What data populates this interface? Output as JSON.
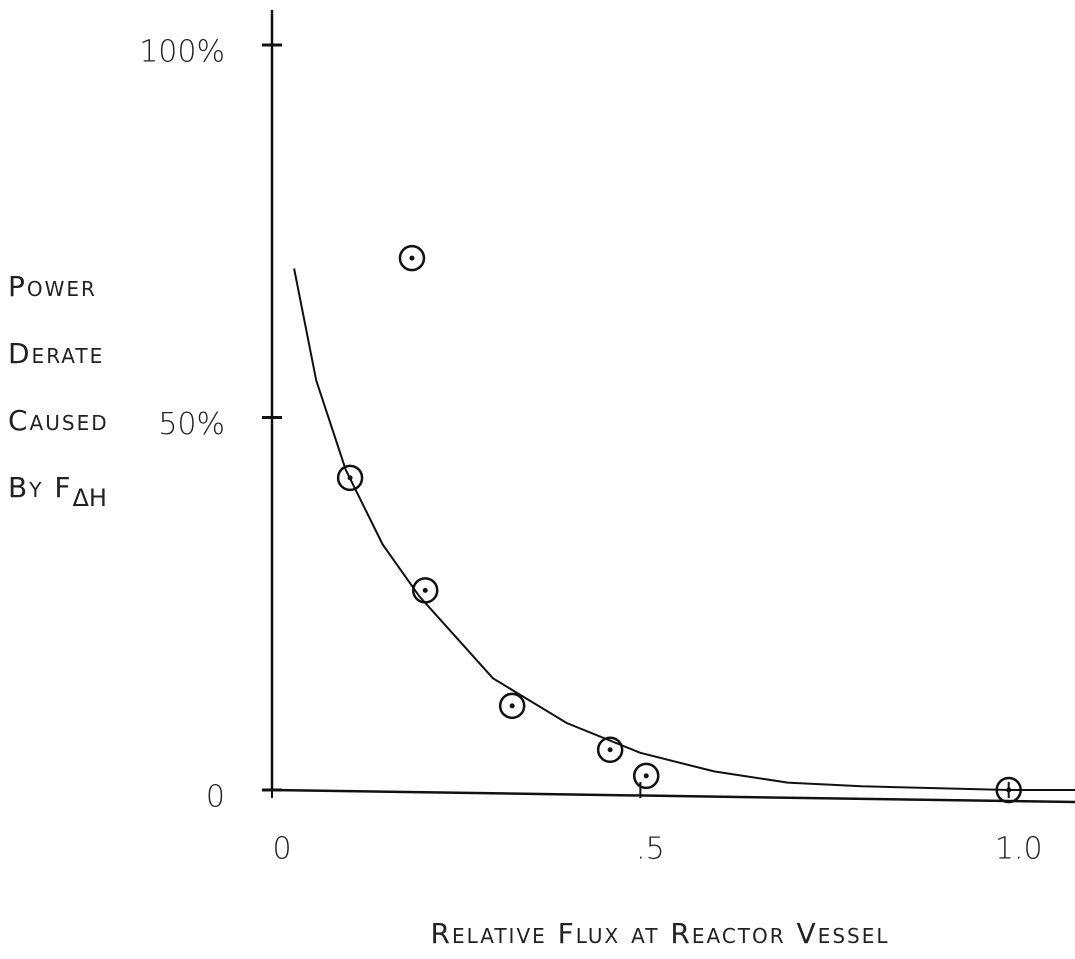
{
  "chart_data": {
    "type": "scatter",
    "ylabel_lines": [
      "Power",
      "Derate",
      "Caused",
      "By F"
    ],
    "ylabel_subscript": "ΔH",
    "xlabel": "Relative Flux at Reactor Vessel",
    "series": [
      {
        "style": "markers",
        "color": "#111111",
        "x": [
          0.19,
          0.106,
          0.208,
          0.326,
          0.459,
          0.508,
          1.0
        ],
        "values": [
          71.4,
          41.9,
          26.8,
          11.3,
          5.4,
          1.9,
          0
        ]
      },
      {
        "style": "line",
        "color": "#111111",
        "x": [
          0.03,
          0.06,
          0.1,
          0.15,
          0.2,
          0.3,
          0.4,
          0.5,
          0.6,
          0.7,
          0.8,
          1.0,
          1.09
        ],
        "values": [
          70,
          55,
          43,
          33,
          26,
          15,
          9,
          5,
          2.5,
          1,
          0.5,
          0,
          0
        ]
      }
    ],
    "xlim": [
      0,
      1.09
    ],
    "ylim": [
      0,
      104.7
    ],
    "xticks": [
      0,
      {
        "value": 0.5,
        "label": ".5"
      },
      {
        "value": 1,
        "label": "1.0"
      }
    ],
    "yticks": [
      0,
      {
        "value": 50,
        "label": "50%"
      },
      {
        "value": 100,
        "label": "100%"
      }
    ],
    "grid": false
  }
}
